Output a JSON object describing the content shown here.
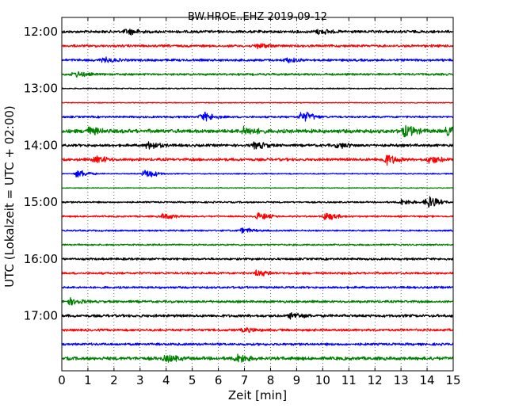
{
  "chart_data": {
    "type": "line",
    "title": "BW.HROE..EHZ 2019-09-12",
    "xlabel": "Zeit  [min]",
    "ylabel": "UTC (Lokalzeit = UTC + 02:00)",
    "xlim": [
      0,
      15
    ],
    "x_ticks": [
      "0",
      "1",
      "2",
      "3",
      "4",
      "5",
      "6",
      "7",
      "8",
      "9",
      "10",
      "11",
      "12",
      "13",
      "14",
      "15"
    ],
    "y_ticks": [
      "12:00",
      "13:00",
      "14:00",
      "15:00",
      "16:00",
      "17:00"
    ],
    "vertical_grid": "dotted",
    "trace_colors": [
      "#000000",
      "#ff0000",
      "#0000ff",
      "#008000"
    ],
    "traces": [
      {
        "start": "12:00",
        "amp": 0.25
      },
      {
        "start": "12:15",
        "amp": 0.22
      },
      {
        "start": "12:30",
        "amp": 0.22
      },
      {
        "start": "12:45",
        "amp": 0.2
      },
      {
        "start": "13:00",
        "amp": 0.1
      },
      {
        "start": "13:15",
        "amp": 0.08
      },
      {
        "start": "13:30",
        "amp": 0.18
      },
      {
        "start": "13:45",
        "amp": 0.35
      },
      {
        "start": "14:00",
        "amp": 0.25
      },
      {
        "start": "14:15",
        "amp": 0.25
      },
      {
        "start": "14:30",
        "amp": 0.1
      },
      {
        "start": "14:45",
        "amp": 0.08
      },
      {
        "start": "15:00",
        "amp": 0.15
      },
      {
        "start": "15:15",
        "amp": 0.15
      },
      {
        "start": "15:30",
        "amp": 0.15
      },
      {
        "start": "15:45",
        "amp": 0.15
      },
      {
        "start": "16:00",
        "amp": 0.2
      },
      {
        "start": "16:15",
        "amp": 0.2
      },
      {
        "start": "16:30",
        "amp": 0.2
      },
      {
        "start": "16:45",
        "amp": 0.22
      },
      {
        "start": "17:00",
        "amp": 0.25
      },
      {
        "start": "17:15",
        "amp": 0.22
      },
      {
        "start": "17:30",
        "amp": 0.22
      },
      {
        "start": "17:45",
        "amp": 0.3
      }
    ],
    "events": [
      {
        "trace": 0,
        "minute": 2.5,
        "amp": 0.4
      },
      {
        "trace": 0,
        "minute": 9.8,
        "amp": 0.35
      },
      {
        "trace": 1,
        "minute": 7.5,
        "amp": 0.4
      },
      {
        "trace": 2,
        "minute": 1.6,
        "amp": 0.35
      },
      {
        "trace": 2,
        "minute": 8.6,
        "amp": 0.3
      },
      {
        "trace": 3,
        "minute": 0.5,
        "amp": 0.4
      },
      {
        "trace": 6,
        "minute": 5.4,
        "amp": 0.7
      },
      {
        "trace": 6,
        "minute": 9.2,
        "amp": 0.8
      },
      {
        "trace": 7,
        "minute": 1.0,
        "amp": 0.5
      },
      {
        "trace": 7,
        "minute": 7.0,
        "amp": 0.6
      },
      {
        "trace": 7,
        "minute": 13.1,
        "amp": 0.8
      },
      {
        "trace": 7,
        "minute": 14.8,
        "amp": 0.7
      },
      {
        "trace": 8,
        "minute": 3.3,
        "amp": 0.55
      },
      {
        "trace": 8,
        "minute": 7.4,
        "amp": 0.5
      },
      {
        "trace": 8,
        "minute": 10.6,
        "amp": 0.35
      },
      {
        "trace": 9,
        "minute": 1.3,
        "amp": 0.5
      },
      {
        "trace": 9,
        "minute": 12.4,
        "amp": 0.8
      },
      {
        "trace": 9,
        "minute": 14.1,
        "amp": 0.5
      },
      {
        "trace": 10,
        "minute": 0.6,
        "amp": 0.6
      },
      {
        "trace": 10,
        "minute": 3.2,
        "amp": 0.7
      },
      {
        "trace": 12,
        "minute": 13.0,
        "amp": 0.4
      },
      {
        "trace": 12,
        "minute": 14.0,
        "amp": 1.0
      },
      {
        "trace": 13,
        "minute": 3.9,
        "amp": 0.45
      },
      {
        "trace": 13,
        "minute": 7.5,
        "amp": 0.5
      },
      {
        "trace": 13,
        "minute": 10.1,
        "amp": 0.6
      },
      {
        "trace": 14,
        "minute": 6.9,
        "amp": 0.35
      },
      {
        "trace": 17,
        "minute": 7.5,
        "amp": 0.45
      },
      {
        "trace": 19,
        "minute": 0.3,
        "amp": 0.5
      },
      {
        "trace": 20,
        "minute": 8.8,
        "amp": 0.45
      },
      {
        "trace": 21,
        "minute": 7.0,
        "amp": 0.3
      },
      {
        "trace": 23,
        "minute": 4.0,
        "amp": 0.5
      },
      {
        "trace": 23,
        "minute": 6.7,
        "amp": 0.6
      }
    ]
  }
}
